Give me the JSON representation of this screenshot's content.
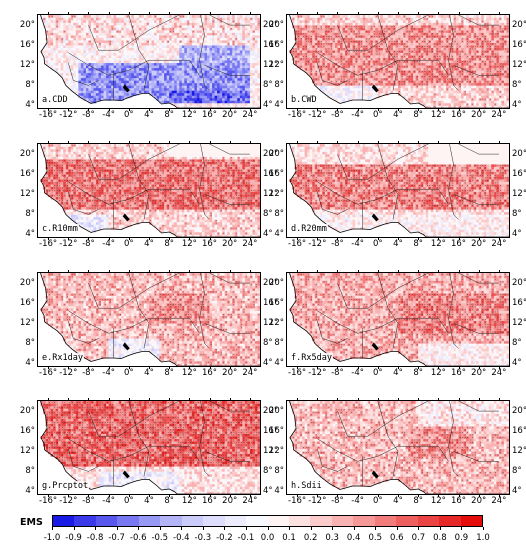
{
  "panels": [
    {
      "label": "a.CDD",
      "mode": "cdd"
    },
    {
      "label": "b.CWD",
      "mode": "cwd"
    },
    {
      "label": "c.R10mm",
      "mode": "r10"
    },
    {
      "label": "d.R20mm",
      "mode": "r20"
    },
    {
      "label": "e.Rx1day",
      "mode": "rx1"
    },
    {
      "label": "f.Rx5day",
      "mode": "rx5"
    },
    {
      "label": "g.Prcptot",
      "mode": "prcp"
    },
    {
      "label": "h.Sdii",
      "mode": "sdii"
    }
  ],
  "lat_labels": [
    "20°",
    "16°",
    "12°",
    "8°",
    "4°"
  ],
  "lon_labels": [
    "-16°",
    "-12°",
    "-8°",
    "-4°",
    "0°",
    "4°",
    "8°",
    "12°",
    "16°",
    "20°",
    "24°"
  ],
  "colorbar": {
    "title": "EMS",
    "ticks": [
      "-1.0",
      "-0.9",
      "-0.8",
      "-0.7",
      "-0.6",
      "-0.5",
      "-0.4",
      "-0.3",
      "-0.2",
      "-0.1",
      "0.0",
      "0.1",
      "0.2",
      "0.3",
      "0.4",
      "0.5",
      "0.6",
      "0.7",
      "0.8",
      "0.9",
      "1.0"
    ],
    "colors": [
      "#1a1ae6",
      "#3a3aea",
      "#5858ee",
      "#7878f2",
      "#9898f5",
      "#b4b4f8",
      "#ccccfa",
      "#dedefc",
      "#ececfd",
      "#f8f8ff",
      "#fff4f4",
      "#fde0e0",
      "#fbcaca",
      "#f8b2b2",
      "#f59898",
      "#f27c7c",
      "#ee6060",
      "#ea4444",
      "#e62828",
      "#e60c0c"
    ]
  }
}
